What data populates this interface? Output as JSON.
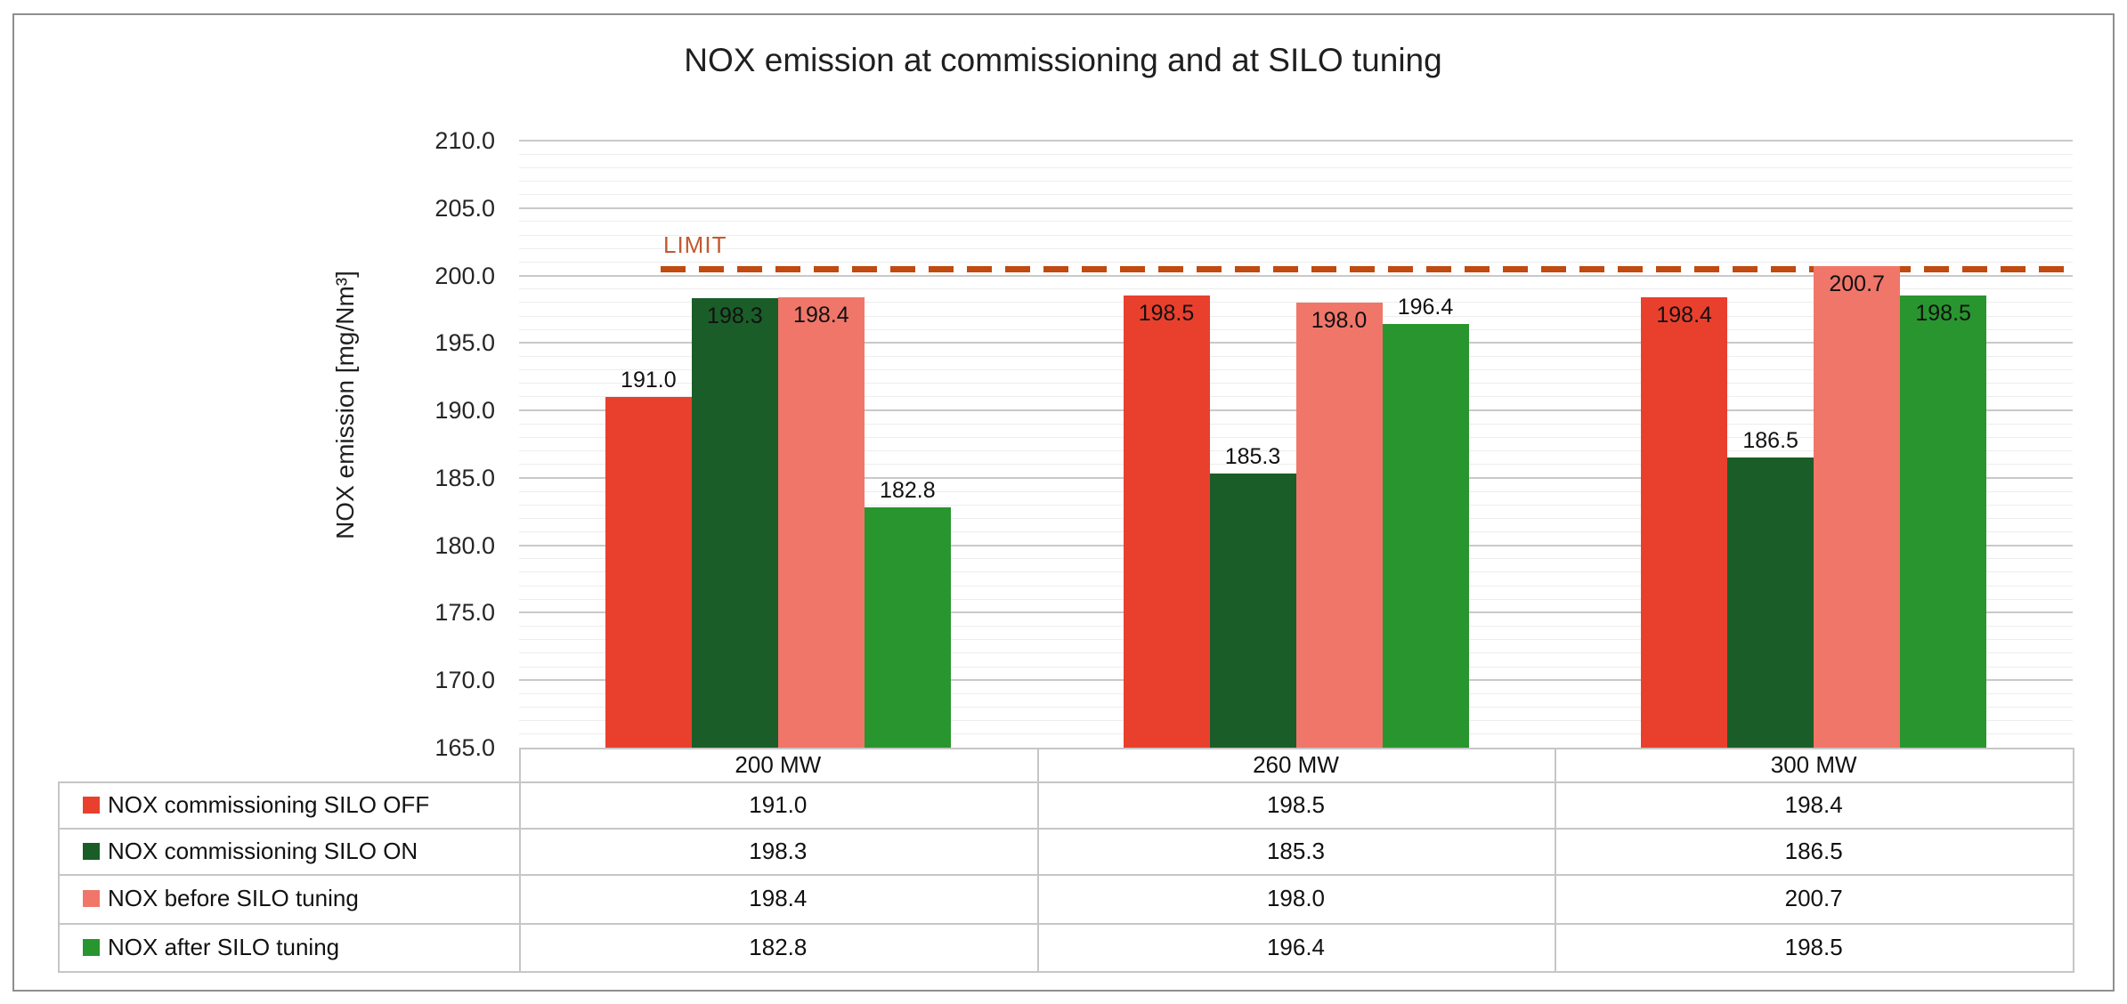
{
  "chart_data": {
    "type": "bar",
    "title": "NOX emission at commissioning and at SILO tuning",
    "ylabel": "NOX emission [mg/Nm³]",
    "categories": [
      "200 MW",
      "260 MW",
      "300 MW"
    ],
    "series": [
      {
        "name": "NOX commissioning SILO OFF",
        "color": "#e9402e",
        "values": [
          191.0,
          198.5,
          198.4
        ]
      },
      {
        "name": "NOX commissioning SILO ON",
        "color": "#1a5d28",
        "values": [
          198.3,
          185.3,
          186.5
        ]
      },
      {
        "name": "NOX before SILO tuning",
        "color": "#f0766a",
        "values": [
          198.4,
          198.0,
          200.7
        ]
      },
      {
        "name": "NOX after SILO tuning",
        "color": "#28952f",
        "values": [
          182.8,
          196.4,
          198.5
        ]
      }
    ],
    "ylim": [
      165.0,
      210.0
    ],
    "y_major_step": 5.0,
    "y_minor_step": 1.0,
    "y_tick_labels": [
      "210.0",
      "205.0",
      "200.0",
      "195.0",
      "190.0",
      "185.0",
      "180.0",
      "175.0",
      "170.0",
      "165.0"
    ],
    "limit": {
      "label": "LIMIT",
      "value": 200.0,
      "line_color": "#c04a10",
      "text_color": "#c2592e"
    },
    "grid": true,
    "legend_position": "table-left",
    "value_decimals": 1
  }
}
